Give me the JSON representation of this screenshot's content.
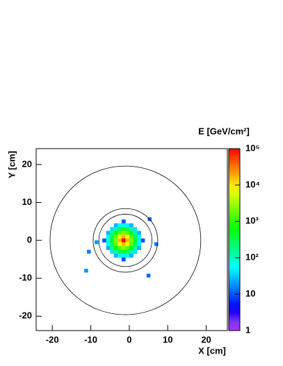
{
  "chart_data": {
    "type": "heatmap",
    "title": "E [GeV/cm²]",
    "x_label": "X [cm]",
    "y_label": "Y [cm]",
    "xlim": [
      -24.2,
      25.5
    ],
    "ylim": [
      -23.8,
      24.2
    ],
    "xticks": [
      -20,
      -10,
      0,
      10,
      20
    ],
    "yticks": [
      -20,
      -10,
      0,
      10,
      20
    ],
    "zlim": [
      1,
      100000
    ],
    "zlog": true,
    "zticks": [
      1,
      10,
      {
        "value": 100,
        "label": "10²"
      },
      {
        "value": 1000,
        "label": "10³"
      },
      {
        "value": 10000,
        "label": "10⁴"
      },
      {
        "value": 100000,
        "label": "10⁵"
      }
    ],
    "x": [
      -6.5,
      -5.5,
      -4.5,
      -3.5,
      -2.5,
      -1.5,
      -0.5,
      0.5,
      1.5,
      2.5,
      3.5
    ],
    "y": [
      5,
      4,
      3,
      2,
      1,
      0,
      -1,
      -2,
      -3,
      -4,
      -5
    ],
    "z": [
      [
        null,
        null,
        null,
        null,
        null,
        10,
        null,
        null,
        null,
        null,
        null
      ],
      [
        null,
        null,
        null,
        26,
        50,
        63,
        50,
        26,
        null,
        null,
        null
      ],
      [
        null,
        null,
        40,
        130,
        300,
        400,
        300,
        130,
        40,
        null,
        null
      ],
      [
        null,
        26,
        130,
        550,
        1600,
        2500,
        1600,
        550,
        130,
        26,
        null
      ],
      [
        null,
        50,
        300,
        1600,
        7400,
        16000,
        7400,
        1600,
        300,
        50,
        null
      ],
      [
        10,
        63,
        400,
        2500,
        16000,
        100000,
        16000,
        2500,
        400,
        63,
        10
      ],
      [
        null,
        50,
        300,
        1600,
        7400,
        16000,
        7400,
        1600,
        300,
        50,
        null
      ],
      [
        null,
        26,
        130,
        550,
        1600,
        2500,
        1600,
        550,
        130,
        26,
        null
      ],
      [
        null,
        null,
        40,
        130,
        300,
        400,
        300,
        130,
        40,
        null,
        null
      ],
      [
        null,
        null,
        null,
        26,
        50,
        63,
        50,
        26,
        null,
        null,
        null
      ],
      [
        null,
        null,
        null,
        null,
        null,
        10,
        null,
        null,
        null,
        null,
        null
      ]
    ],
    "hits": {
      "x": [
        -10.5,
        -11.2,
        5.3,
        5,
        7,
        -8.5
      ],
      "y": [
        -3,
        -8,
        5.6,
        -9.3,
        -1,
        -0.5
      ],
      "values": [
        15,
        20,
        12,
        12,
        15,
        20
      ]
    },
    "circles": [
      {
        "x": -1,
        "y": 0,
        "r": 19.6
      },
      {
        "x": -1,
        "y": 0,
        "r": 8.4
      },
      {
        "x": -1,
        "y": 0,
        "r": 6.9
      }
    ]
  }
}
